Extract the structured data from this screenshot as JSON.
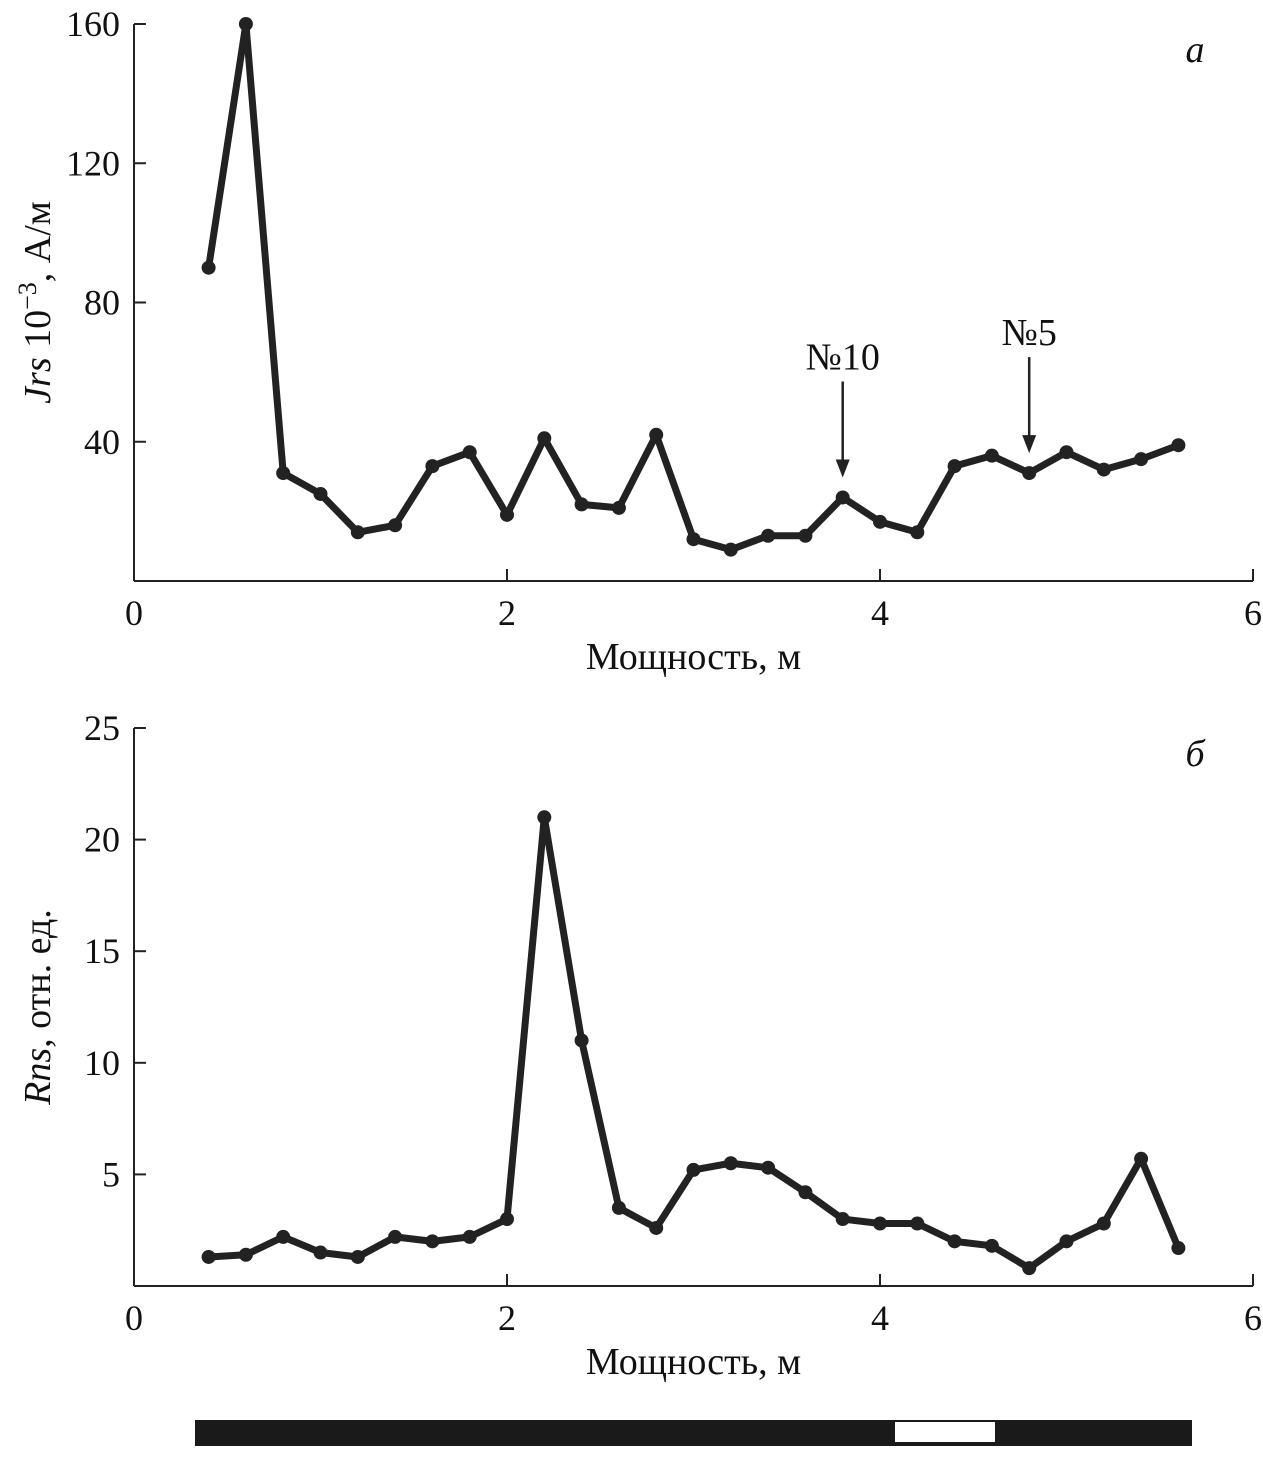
{
  "colors": {
    "ink": "#222222",
    "background": "#ffffff"
  },
  "chart_data": [
    {
      "type": "line",
      "panel": "a",
      "ylabel_var": "Jrs",
      "ylabel_rest": " 10",
      "ylabel_exp": "−3",
      "ylabel_unit": ", А/м",
      "xlabel": "Мощность, м",
      "xlim": [
        0,
        6
      ],
      "ylim": [
        0,
        160
      ],
      "xticks": [
        0,
        2,
        4,
        6
      ],
      "yticks": [
        40,
        80,
        120,
        160
      ],
      "grid": false,
      "x": [
        0.4,
        0.6,
        0.8,
        1.0,
        1.2,
        1.4,
        1.6,
        1.8,
        2.0,
        2.2,
        2.4,
        2.6,
        2.8,
        3.0,
        3.2,
        3.4,
        3.6,
        3.8,
        4.0,
        4.2,
        4.4,
        4.6,
        4.8,
        5.0,
        5.2,
        5.4,
        5.6
      ],
      "values": [
        90,
        160,
        31,
        25,
        14,
        16,
        33,
        37,
        19,
        41,
        22,
        21,
        42,
        12,
        9,
        13,
        13,
        24,
        17,
        14,
        33,
        36,
        31,
        37,
        32,
        35,
        39
      ],
      "annotations": [
        {
          "text": "№10",
          "x": 3.8,
          "y": 24
        },
        {
          "text": "№5",
          "x": 4.8,
          "y": 31
        }
      ]
    },
    {
      "type": "line",
      "panel": "б",
      "ylabel_var": "Rns",
      "ylabel_rest": ", отн. ед.",
      "xlabel": "Мощность, м",
      "xlim": [
        0,
        6
      ],
      "ylim": [
        0,
        25
      ],
      "xticks": [
        0,
        2,
        4,
        6
      ],
      "yticks": [
        5,
        10,
        15,
        20,
        25
      ],
      "grid": false,
      "x": [
        0.4,
        0.6,
        0.8,
        1.0,
        1.2,
        1.4,
        1.6,
        1.8,
        2.0,
        2.2,
        2.4,
        2.6,
        2.8,
        3.0,
        3.2,
        3.4,
        3.6,
        3.8,
        4.0,
        4.2,
        4.4,
        4.6,
        4.8,
        5.0,
        5.2,
        5.4,
        5.6
      ],
      "values": [
        1.3,
        1.4,
        2.2,
        1.5,
        1.3,
        2.2,
        2.0,
        2.2,
        3.0,
        21.0,
        11.0,
        3.5,
        2.6,
        5.2,
        5.5,
        5.3,
        4.2,
        3.0,
        2.8,
        2.8,
        2.0,
        1.8,
        0.8,
        2.0,
        2.8,
        5.7,
        1.7
      ]
    }
  ]
}
